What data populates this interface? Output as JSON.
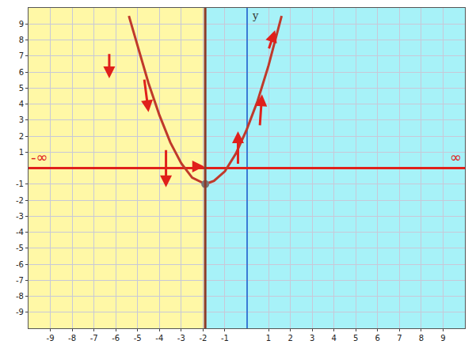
{
  "chart_data": {
    "type": "line",
    "x": [
      -5.4,
      -5,
      -4.5,
      -4,
      -3.5,
      -3,
      -2.5,
      -1.9,
      -1.5,
      -1,
      -0.5,
      0,
      0.5,
      1,
      1.6
    ],
    "values": [
      9.5,
      7.6,
      5.3,
      3.3,
      1.6,
      0.3,
      -0.6,
      -1,
      -0.8,
      -0.2,
      0.9,
      2.4,
      4.2,
      6.4,
      9.5
    ],
    "color": "#c0392b",
    "marker": "vertex",
    "vertex": {
      "x": -1.9,
      "y": -1
    },
    "boundary": -1.9,
    "regions": [
      {
        "from": -10,
        "to": -1.9,
        "color": "#fff35c"
      },
      {
        "from": -1.9,
        "to": 10,
        "color": "#5ee8f2"
      }
    ],
    "arrows": [
      {
        "from": [
          -6.3,
          7.2
        ],
        "to": [
          -6.3,
          5.6
        ]
      },
      {
        "from": [
          -4.7,
          5.6
        ],
        "to": [
          -4.5,
          3.5
        ]
      },
      {
        "from": [
          -3.7,
          1.2
        ],
        "to": [
          -3.7,
          -1.2
        ]
      },
      {
        "from": [
          -2.5,
          0.1
        ],
        "to": [
          -1.95,
          0.1
        ]
      },
      {
        "from": [
          -0.4,
          0.2
        ],
        "to": [
          -0.4,
          2.3
        ]
      },
      {
        "from": [
          0.6,
          2.6
        ],
        "to": [
          0.7,
          4.6
        ]
      },
      {
        "from": [
          1.0,
          7.4
        ],
        "to": [
          1.3,
          8.6
        ]
      }
    ],
    "annotations": [
      {
        "x": -9.5,
        "y": 0.7,
        "text": "-∞"
      },
      {
        "x": 9.6,
        "y": 0.7,
        "text": "∞"
      }
    ],
    "y_label": "y",
    "xlim": [
      -10,
      10
    ],
    "ylim": [
      -10,
      10
    ],
    "xticks": [
      -9,
      -8,
      -7,
      -6,
      -5,
      -4,
      -3,
      -2,
      -1,
      1,
      2,
      3,
      4,
      5,
      6,
      7,
      8,
      9
    ],
    "yticks": [
      -9,
      -8,
      -7,
      -6,
      -5,
      -4,
      -3,
      -2,
      -1,
      1,
      2,
      3,
      4,
      5,
      6,
      7,
      8,
      9
    ],
    "grid": true
  }
}
